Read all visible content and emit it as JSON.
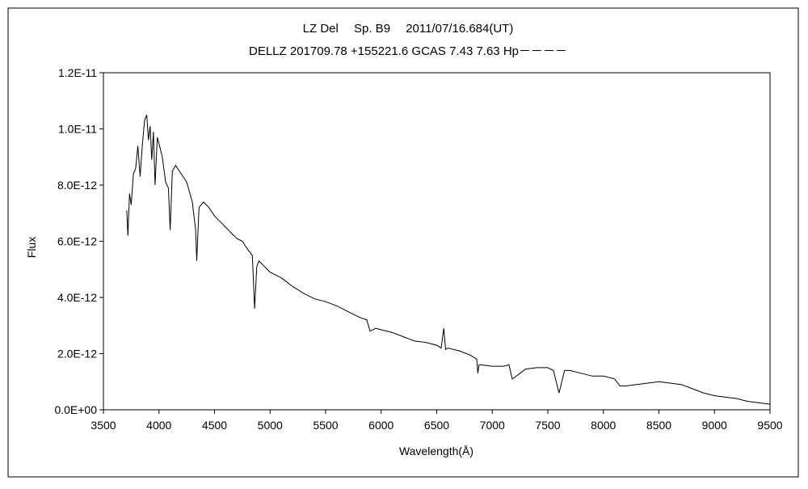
{
  "chart_data": {
    "type": "line",
    "title_line1": "LZ Del　 Sp. B9　 2011/07/16.684(UT)",
    "title_line2": "DELLZ 201709.78 +155221.6 GCAS 7.43 7.63 Hp－－－－",
    "xlabel": "Wavelength(Å)",
    "ylabel": "Flux",
    "xlim": [
      3500,
      9500
    ],
    "ylim": [
      0,
      1.2e-11
    ],
    "xticks": [
      "3500",
      "4000",
      "4500",
      "5000",
      "5500",
      "6000",
      "6500",
      "7000",
      "7500",
      "8000",
      "8500",
      "9000",
      "9500"
    ],
    "yticks": [
      "0.0E+00",
      "2.0E-12",
      "4.0E-12",
      "6.0E-12",
      "8.0E-12",
      "1.0E-11",
      "1.2E-11"
    ],
    "grid": false,
    "series": [
      {
        "x": [
          3710,
          3720,
          3735,
          3750,
          3770,
          3790,
          3810,
          3830,
          3850,
          3870,
          3890,
          3905,
          3920,
          3935,
          3950,
          3965,
          3985,
          4005,
          4030,
          4060,
          4085,
          4101,
          4120,
          4150,
          4200,
          4250,
          4300,
          4330,
          4340,
          4360,
          4400,
          4450,
          4500,
          4550,
          4600,
          4650,
          4700,
          4750,
          4800,
          4840,
          4861,
          4880,
          4900,
          4950,
          5000,
          5050,
          5100,
          5200,
          5300,
          5400,
          5500,
          5600,
          5700,
          5800,
          5870,
          5900,
          5950,
          6000,
          6100,
          6200,
          6300,
          6400,
          6500,
          6540,
          6563,
          6580,
          6600,
          6700,
          6800,
          6860,
          6870,
          6880,
          6900,
          7000,
          7100,
          7150,
          7180,
          7200,
          7250,
          7300,
          7400,
          7500,
          7550,
          7600,
          7620,
          7650,
          7700,
          7800,
          7900,
          8000,
          8100,
          8150,
          8200,
          8300,
          8400,
          8500,
          8600,
          8700,
          8800,
          8900,
          9000,
          9100,
          9200,
          9300,
          9400,
          9500
        ],
        "y": [
          7.1e-12,
          6.2e-12,
          7.7e-12,
          7.3e-12,
          8.4e-12,
          8.6e-12,
          9.4e-12,
          8.3e-12,
          9.4e-12,
          1.03e-11,
          1.05e-11,
          9.6e-12,
          1.01e-11,
          8.9e-12,
          9.9e-12,
          8e-12,
          9.7e-12,
          9.4e-12,
          9e-12,
          8.1e-12,
          7.9e-12,
          6.4e-12,
          8.5e-12,
          8.7e-12,
          8.4e-12,
          8.1e-12,
          7.4e-12,
          6.4e-12,
          5.3e-12,
          7.2e-12,
          7.4e-12,
          7.2e-12,
          6.9e-12,
          6.7e-12,
          6.5e-12,
          6.3e-12,
          6.1e-12,
          6e-12,
          5.7e-12,
          5.5e-12,
          3.6e-12,
          5.1e-12,
          5.3e-12,
          5.1e-12,
          4.9e-12,
          4.8e-12,
          4.7e-12,
          4.4e-12,
          4.15e-12,
          3.95e-12,
          3.85e-12,
          3.7e-12,
          3.5e-12,
          3.3e-12,
          3.2e-12,
          2.8e-12,
          2.9e-12,
          2.85e-12,
          2.75e-12,
          2.6e-12,
          2.45e-12,
          2.4e-12,
          2.3e-12,
          2.2e-12,
          2.9e-12,
          2.15e-12,
          2.2e-12,
          2.1e-12,
          1.95e-12,
          1.8e-12,
          1.3e-12,
          1.6e-12,
          1.6e-12,
          1.55e-12,
          1.55e-12,
          1.6e-12,
          1.1e-12,
          1.15e-12,
          1.3e-12,
          1.45e-12,
          1.5e-12,
          1.5e-12,
          1.4e-12,
          6e-13,
          9e-13,
          1.4e-12,
          1.4e-12,
          1.3e-12,
          1.2e-12,
          1.2e-12,
          1.1e-12,
          8.5e-13,
          8.5e-13,
          9e-13,
          9.5e-13,
          1e-12,
          9.5e-13,
          9e-13,
          7.5e-13,
          6e-13,
          5e-13,
          4.5e-13,
          4e-13,
          3e-13,
          2.5e-13,
          2e-13
        ]
      }
    ]
  }
}
